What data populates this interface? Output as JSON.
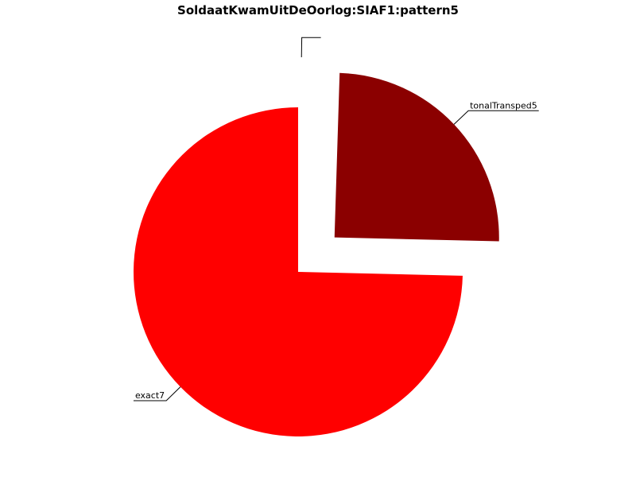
{
  "chart_data": {
    "type": "pie",
    "title": "SoldaatKwamUitDeOorlog:SIAF1:pattern5",
    "slices": [
      {
        "label": "",
        "value": 0.5,
        "color": "#ffffff",
        "exploded": true
      },
      {
        "label": "tonalTransped5",
        "value": 25,
        "color": "#8b0000",
        "exploded": true
      },
      {
        "label": "exact7",
        "value": 75,
        "color": "#ff0000",
        "exploded": false
      }
    ],
    "start_angle_deg": 90,
    "direction": "clockwise"
  }
}
